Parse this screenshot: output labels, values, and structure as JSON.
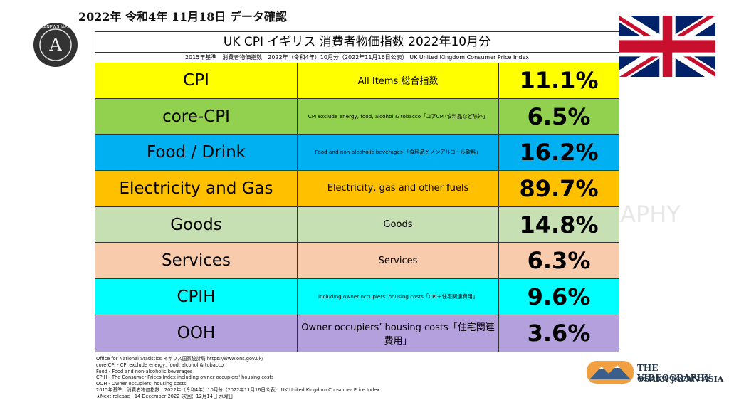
{
  "header": {
    "date": "2022年 令和4年 11月18日 データ確認",
    "title": "UK CPI イギリス 消費者物価指数 2022年10月分",
    "subtitle": "2015年基準　消費者物価指数　2022年（令和4年）10月分（2022年11月16日公表）  UK United Kingdom Consumer Price Index"
  },
  "logo": {
    "text": "AKANEWS JAPAN",
    "letter": "A"
  },
  "table": {
    "rows": [
      [
        "CPI",
        "All Items 総合指数",
        "11.1%"
      ],
      [
        "core-CPI",
        "CPI exclude energy, food, alcohol & tobacco「コアCPI･食料品など除外」",
        "6.5%"
      ],
      [
        "Food / Drink",
        "Food and non-alcoholic beverages 「食料品とノンアルコール飲料」",
        "16.2%"
      ],
      [
        "Electricity and Gas",
        "Electricity, gas and other fuels",
        "89.7%"
      ],
      [
        "Goods",
        "Goods",
        "14.8%"
      ],
      [
        "Services",
        "Services",
        "6.3%"
      ],
      [
        "CPIH",
        "including owner occupiers’ housing costs「CPI＋住宅関連費用」",
        "9.6%"
      ],
      [
        "OOH",
        "Owner occupiers’ housing costs「住宅関連費用」",
        "3.6%"
      ]
    ]
  },
  "footnotes": [
    "Office for National Statistics イギリス国家統計局 https://www.ons.gov.uk/",
    "core-CPI - CPI exclude energy, food, alcohol & tobacco",
    "Food - Food and non-alcoholic beverages",
    "CPIH - The Consumer Prices Index including owner occupiers' housing costs",
    "OOH - Owner occupiers' housing costs",
    "2015年基準　消費者物価指数　2022年（令和4年）10月分（2022年11月16日公表）  UK United Kingdom Consumer Price Index",
    "★Next release : 14 December 2022･次回：12月14日 水曜日"
  ],
  "watermark": "THE VIDEOGRAPHY",
  "brand": {
    "name": "THE VIDEOGRAPHY",
    "place": "OSAKA JAPAN ASIA"
  }
}
